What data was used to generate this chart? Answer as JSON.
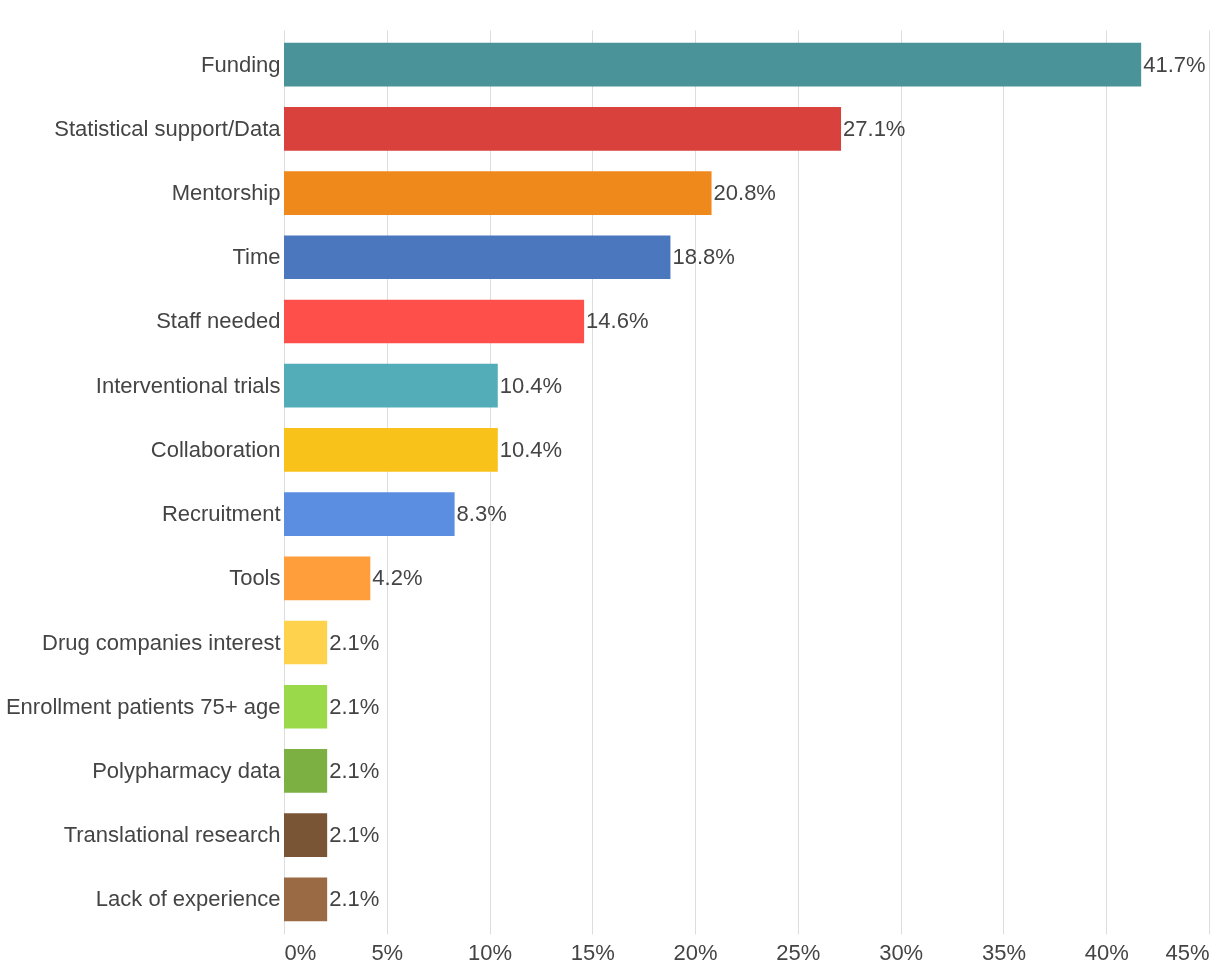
{
  "chart_data": {
    "type": "bar",
    "orientation": "horizontal",
    "categories": [
      "Funding",
      "Statistical support/Data",
      "Mentorship",
      "Time",
      "Staff needed",
      "Interventional trials",
      "Collaboration",
      "Recruitment",
      "Tools",
      "Drug companies interest",
      "Enrollment patients 75+ age",
      "Polypharmacy data",
      "Translational research",
      "Lack of experience"
    ],
    "values": [
      41.7,
      27.1,
      20.8,
      18.8,
      14.6,
      10.4,
      10.4,
      8.3,
      4.2,
      2.1,
      2.1,
      2.1,
      2.1,
      2.1
    ],
    "colors": [
      "#4a9399",
      "#d9413c",
      "#f0891c",
      "#4a77be",
      "#ff4f4a",
      "#52adb9",
      "#f8c21b",
      "#5b8ee0",
      "#ff9e3a",
      "#ffd24d",
      "#9ad94a",
      "#7db043",
      "#7a5535",
      "#9a6a45"
    ],
    "value_labels": [
      "41.7%",
      "27.1%",
      "20.8%",
      "18.8%",
      "14.6%",
      "10.4%",
      "10.4%",
      "8.3%",
      "4.2%",
      "2.1%",
      "2.1%",
      "2.1%",
      "2.1%",
      "2.1%"
    ],
    "xlim": [
      0,
      45
    ],
    "xticks": [
      {
        "value": 0,
        "label": "0%"
      },
      {
        "value": 5,
        "label": "5%"
      },
      {
        "value": 10,
        "label": "10%"
      },
      {
        "value": 15,
        "label": "15%"
      },
      {
        "value": 20,
        "label": "20%"
      },
      {
        "value": 25,
        "label": "25%"
      },
      {
        "value": 30,
        "label": "30%"
      },
      {
        "value": 35,
        "label": "35%"
      },
      {
        "value": 40,
        "label": "40%"
      },
      {
        "value": 45,
        "label": "45%"
      }
    ],
    "grid": "x",
    "legend": false
  }
}
